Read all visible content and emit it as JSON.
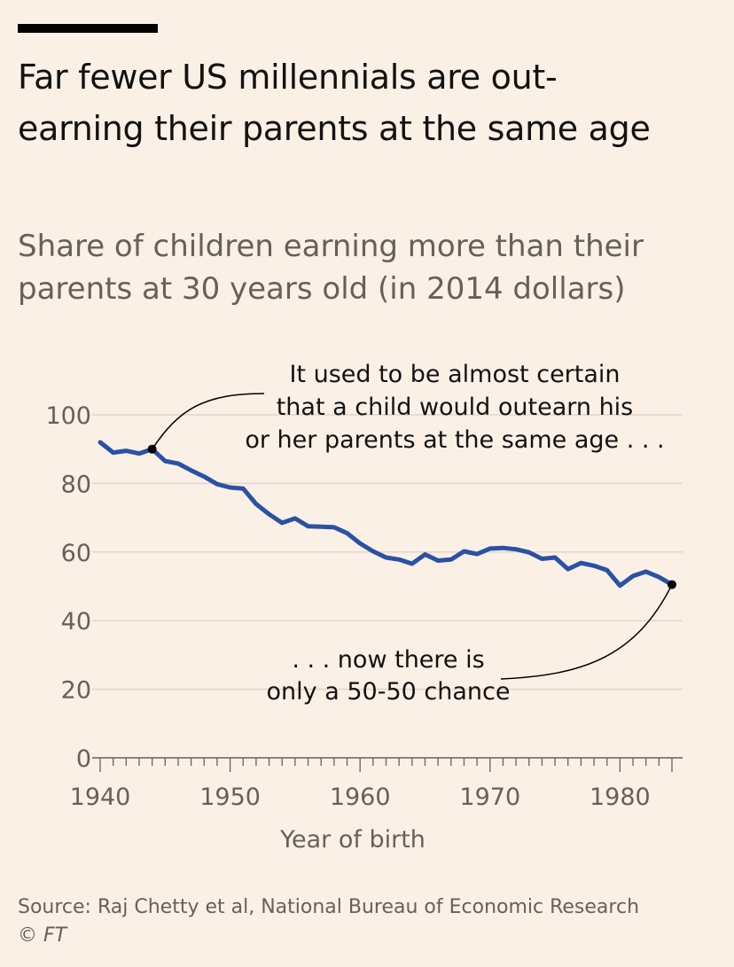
{
  "header": {
    "title": "Far fewer US millennials are out-earning their parents at the same age",
    "subtitle": "Share of children earning more than their parents at 30 years old (in 2014 dollars)"
  },
  "footer": {
    "source": "Source: Raj Chetty et al, National Bureau of Economic Research",
    "copyright": "© FT"
  },
  "colors": {
    "background": "#fbf0e6",
    "line": "#2a52a4",
    "grid": "#e0d6cd",
    "axis_text": "#66605c",
    "annotation_text": "#121212"
  },
  "chart_data": {
    "type": "line",
    "title": "Far fewer US millennials are out-earning their parents at the same age",
    "subtitle": "Share of children earning more than their parents at 30 years old (in 2014 dollars)",
    "xlabel": "Year of birth",
    "ylabel": "",
    "xlim": [
      1940,
      1984
    ],
    "ylim": [
      0,
      100
    ],
    "x_ticks": [
      1940,
      1950,
      1960,
      1970,
      1980
    ],
    "y_ticks": [
      0,
      20,
      40,
      60,
      80,
      100
    ],
    "grid": true,
    "series": [
      {
        "name": "Share of children earning more than their parents",
        "x": [
          1940,
          1941,
          1942,
          1943,
          1944,
          1945,
          1946,
          1947,
          1948,
          1949,
          1950,
          1951,
          1952,
          1953,
          1954,
          1955,
          1956,
          1957,
          1958,
          1959,
          1960,
          1961,
          1962,
          1963,
          1964,
          1965,
          1966,
          1967,
          1968,
          1969,
          1970,
          1971,
          1972,
          1973,
          1974,
          1975,
          1976,
          1977,
          1978,
          1979,
          1980,
          1981,
          1982,
          1983,
          1984
        ],
        "values": [
          92,
          89,
          89.5,
          88.7,
          90,
          86.5,
          85.8,
          83.8,
          82,
          79.8,
          78.8,
          78.5,
          74,
          71,
          68.5,
          69.8,
          67.5,
          67.4,
          67.2,
          65.5,
          62.5,
          60.2,
          58.4,
          57.8,
          56.6,
          59.3,
          57.5,
          57.8,
          60.2,
          59.4,
          61,
          61.2,
          60.8,
          59.9,
          58,
          58.4,
          55,
          56.8,
          56,
          54.7,
          50.2,
          53,
          54.3,
          52.7,
          50.5
        ]
      }
    ],
    "highlights": [
      {
        "x": 1944,
        "y": 90
      },
      {
        "x": 1984,
        "y": 50.5
      }
    ],
    "annotations": [
      {
        "target_year": 1944,
        "lines": [
          "It used to be almost certain",
          "that a child would outearn his",
          "or her parents at the same age . . ."
        ]
      },
      {
        "target_year": 1984,
        "lines": [
          ". . . now there is",
          "only a 50-50 chance"
        ]
      }
    ]
  }
}
